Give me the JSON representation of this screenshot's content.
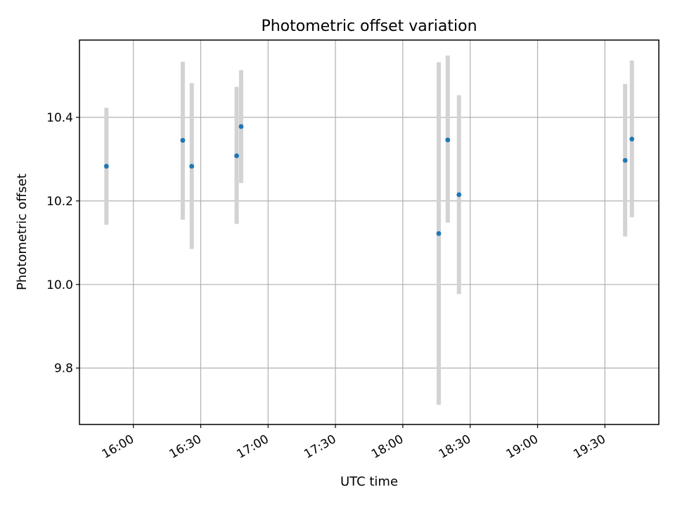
{
  "chart_data": {
    "type": "scatter",
    "title": "Photometric offset variation",
    "xlabel": "UTC time",
    "ylabel": "Photometric offset",
    "x_is_time": true,
    "xlim": [
      "15:36",
      "19:54"
    ],
    "ylim": [
      9.665,
      10.585
    ],
    "x_ticks": [
      "16:00",
      "16:30",
      "17:00",
      "17:30",
      "18:00",
      "18:30",
      "19:00",
      "19:30"
    ],
    "y_ticks": [
      9.8,
      10.0,
      10.2,
      10.4
    ],
    "y_tick_labels": [
      "9.8",
      "10.0",
      "10.2",
      "10.4"
    ],
    "grid": true,
    "marker_color": "#1f77b4",
    "errorbar_color": "#d3d3d3",
    "points": [
      {
        "x": "15:48",
        "y": 10.283,
        "yerr_low": 10.143,
        "yerr_high": 10.423
      },
      {
        "x": "16:22",
        "y": 10.345,
        "yerr_low": 10.155,
        "yerr_high": 10.533
      },
      {
        "x": "16:26",
        "y": 10.283,
        "yerr_low": 10.085,
        "yerr_high": 10.482
      },
      {
        "x": "16:46",
        "y": 10.308,
        "yerr_low": 10.145,
        "yerr_high": 10.473
      },
      {
        "x": "16:48",
        "y": 10.378,
        "yerr_low": 10.243,
        "yerr_high": 10.513
      },
      {
        "x": "18:16",
        "y": 10.122,
        "yerr_low": 9.712,
        "yerr_high": 10.532
      },
      {
        "x": "18:20",
        "y": 10.346,
        "yerr_low": 10.148,
        "yerr_high": 10.548
      },
      {
        "x": "18:25",
        "y": 10.215,
        "yerr_low": 9.977,
        "yerr_high": 10.453
      },
      {
        "x": "19:39",
        "y": 10.297,
        "yerr_low": 10.115,
        "yerr_high": 10.48
      },
      {
        "x": "19:42",
        "y": 10.348,
        "yerr_low": 10.161,
        "yerr_high": 10.536
      }
    ]
  }
}
